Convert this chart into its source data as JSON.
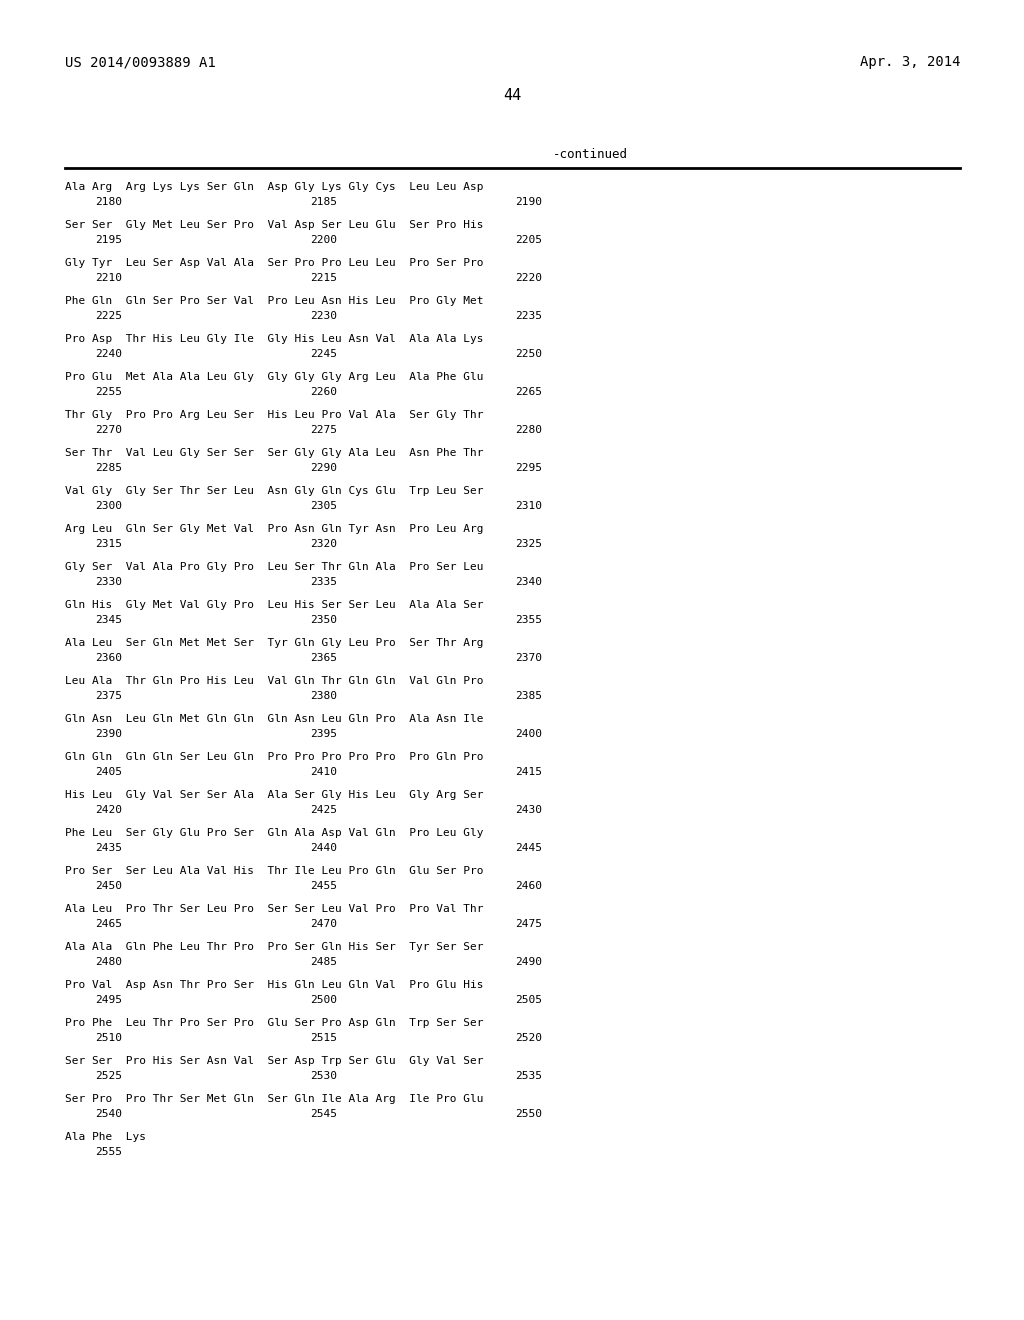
{
  "header_left": "US 2014/0093889 A1",
  "header_right": "Apr. 3, 2014",
  "page_number": "44",
  "continued_label": "-continued",
  "background_color": "#ffffff",
  "text_color": "#000000",
  "sequence_data": [
    [
      "Ala Arg  Arg Lys Lys Ser Gln  Asp Gly Lys Gly Cys  Leu Leu Asp",
      "2180",
      "2185",
      "2190"
    ],
    [
      "Ser Ser  Gly Met Leu Ser Pro  Val Asp Ser Leu Glu  Ser Pro His",
      "2195",
      "2200",
      "2205"
    ],
    [
      "Gly Tyr  Leu Ser Asp Val Ala  Ser Pro Pro Leu Leu  Pro Ser Pro",
      "2210",
      "2215",
      "2220"
    ],
    [
      "Phe Gln  Gln Ser Pro Ser Val  Pro Leu Asn His Leu  Pro Gly Met",
      "2225",
      "2230",
      "2235"
    ],
    [
      "Pro Asp  Thr His Leu Gly Ile  Gly His Leu Asn Val  Ala Ala Lys",
      "2240",
      "2245",
      "2250"
    ],
    [
      "Pro Glu  Met Ala Ala Leu Gly  Gly Gly Gly Arg Leu  Ala Phe Glu",
      "2255",
      "2260",
      "2265"
    ],
    [
      "Thr Gly  Pro Pro Arg Leu Ser  His Leu Pro Val Ala  Ser Gly Thr",
      "2270",
      "2275",
      "2280"
    ],
    [
      "Ser Thr  Val Leu Gly Ser Ser  Ser Gly Gly Ala Leu  Asn Phe Thr",
      "2285",
      "2290",
      "2295"
    ],
    [
      "Val Gly  Gly Ser Thr Ser Leu  Asn Gly Gln Cys Glu  Trp Leu Ser",
      "2300",
      "2305",
      "2310"
    ],
    [
      "Arg Leu  Gln Ser Gly Met Val  Pro Asn Gln Tyr Asn  Pro Leu Arg",
      "2315",
      "2320",
      "2325"
    ],
    [
      "Gly Ser  Val Ala Pro Gly Pro  Leu Ser Thr Gln Ala  Pro Ser Leu",
      "2330",
      "2335",
      "2340"
    ],
    [
      "Gln His  Gly Met Val Gly Pro  Leu His Ser Ser Leu  Ala Ala Ser",
      "2345",
      "2350",
      "2355"
    ],
    [
      "Ala Leu  Ser Gln Met Met Ser  Tyr Gln Gly Leu Pro  Ser Thr Arg",
      "2360",
      "2365",
      "2370"
    ],
    [
      "Leu Ala  Thr Gln Pro His Leu  Val Gln Thr Gln Gln  Val Gln Pro",
      "2375",
      "2380",
      "2385"
    ],
    [
      "Gln Asn  Leu Gln Met Gln Gln  Gln Asn Leu Gln Pro  Ala Asn Ile",
      "2390",
      "2395",
      "2400"
    ],
    [
      "Gln Gln  Gln Gln Ser Leu Gln  Pro Pro Pro Pro Pro  Pro Gln Pro",
      "2405",
      "2410",
      "2415"
    ],
    [
      "His Leu  Gly Val Ser Ser Ala  Ala Ser Gly His Leu  Gly Arg Ser",
      "2420",
      "2425",
      "2430"
    ],
    [
      "Phe Leu  Ser Gly Glu Pro Ser  Gln Ala Asp Val Gln  Pro Leu Gly",
      "2435",
      "2440",
      "2445"
    ],
    [
      "Pro Ser  Ser Leu Ala Val His  Thr Ile Leu Pro Gln  Glu Ser Pro",
      "2450",
      "2455",
      "2460"
    ],
    [
      "Ala Leu  Pro Thr Ser Leu Pro  Ser Ser Leu Val Pro  Pro Val Thr",
      "2465",
      "2470",
      "2475"
    ],
    [
      "Ala Ala  Gln Phe Leu Thr Pro  Pro Ser Gln His Ser  Tyr Ser Ser",
      "2480",
      "2485",
      "2490"
    ],
    [
      "Pro Val  Asp Asn Thr Pro Ser  His Gln Leu Gln Val  Pro Glu His",
      "2495",
      "2500",
      "2505"
    ],
    [
      "Pro Phe  Leu Thr Pro Ser Pro  Glu Ser Pro Asp Gln  Trp Ser Ser",
      "2510",
      "2515",
      "2520"
    ],
    [
      "Ser Ser  Pro His Ser Asn Val  Ser Asp Trp Ser Glu  Gly Val Ser",
      "2525",
      "2530",
      "2535"
    ],
    [
      "Ser Pro  Pro Thr Ser Met Gln  Ser Gln Ile Ala Arg  Ile Pro Glu",
      "2540",
      "2545",
      "2550"
    ],
    [
      "Ala Phe  Lys",
      "2555",
      "",
      ""
    ]
  ]
}
